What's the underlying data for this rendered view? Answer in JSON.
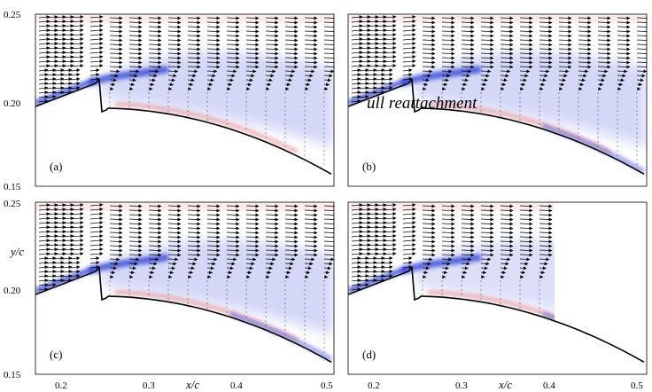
{
  "figure": {
    "panel_labels": [
      "(a)",
      "(b)",
      "(c)",
      "(d)"
    ],
    "annotation": "ull reattachment",
    "x_axis_label": "x/c",
    "y_axis_label": "y/c",
    "y_ticks": [
      "0.25",
      "0.20",
      "0.15"
    ],
    "x_ticks": [
      "0.2",
      "0.3",
      "0.4",
      "0.5"
    ],
    "colors": {
      "negative_vorticity": "#2a3fd6",
      "positive_vorticity": "#e06a6a",
      "surface": "#000000",
      "vectors": "#000000"
    }
  },
  "chart_data": {
    "type": "vector-field-contour",
    "panels": 4,
    "xlim": [
      0.18,
      0.5
    ],
    "ylim": [
      0.15,
      0.25
    ],
    "xlabel": "x/c",
    "ylabel": "y/c",
    "x_ticks": [
      0.2,
      0.3,
      0.4,
      0.5
    ],
    "y_ticks": [
      0.15,
      0.2,
      0.25
    ],
    "grid": false
  }
}
